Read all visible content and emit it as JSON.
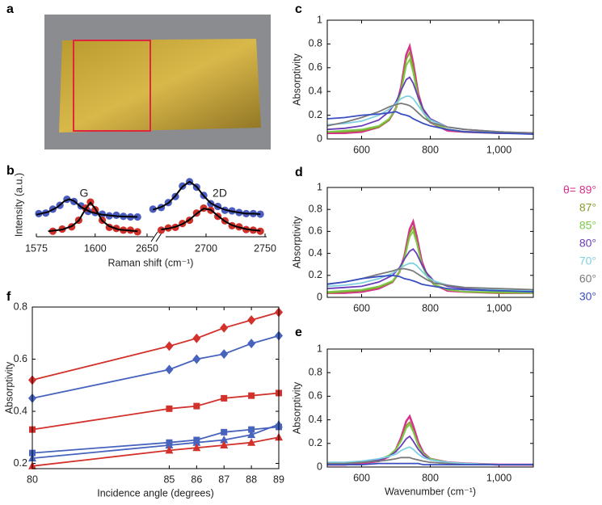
{
  "chart_data": [
    {
      "type": "image",
      "panel_label": "a"
    },
    {
      "type": "scatter",
      "panel_label": "b",
      "ylabel": "Intensity (a.u.)",
      "xlabel": "Raman shift (cm⁻¹)",
      "annotations": [
        "G",
        "2D"
      ],
      "xlim": [
        1575,
        1620
      ],
      "xticks": [
        1575,
        1600
      ],
      "x2lim": [
        2650,
        2750
      ],
      "x2ticks": [
        2650,
        2700,
        2750
      ],
      "ylim": [
        0,
        1.1
      ],
      "series": [
        {
          "style": "points",
          "color": "#4a5cc0",
          "x": [
            1576,
            1579,
            1582,
            1585,
            1588,
            1591,
            1594,
            1597,
            1600,
            1603,
            1606,
            1609,
            1612,
            1615,
            1618
          ],
          "values": [
            0.42,
            0.43,
            0.5,
            0.57,
            0.68,
            0.64,
            0.56,
            0.46,
            0.44,
            0.41,
            0.38,
            0.39,
            0.37,
            0.36,
            0.36
          ]
        },
        {
          "style": "points",
          "color": "#d0302a",
          "x": [
            1582,
            1586,
            1590,
            1593,
            1596,
            1598,
            1600,
            1603,
            1606,
            1609,
            1612,
            1615,
            1618
          ],
          "values": [
            0.1,
            0.14,
            0.18,
            0.3,
            0.52,
            0.63,
            0.49,
            0.3,
            0.17,
            0.15,
            0.12,
            0.12,
            0.09
          ]
        },
        {
          "style": "points",
          "color": "#4a5cc0",
          "axis": "x2",
          "x": [
            2655,
            2662,
            2668,
            2674,
            2680,
            2686,
            2692,
            2698,
            2704,
            2710,
            2716,
            2722,
            2728,
            2734,
            2740,
            2746
          ],
          "values": [
            0.5,
            0.53,
            0.62,
            0.73,
            0.92,
            1.0,
            0.9,
            0.75,
            0.6,
            0.55,
            0.48,
            0.47,
            0.44,
            0.42,
            0.42,
            0.41
          ]
        },
        {
          "style": "points",
          "color": "#d0302a",
          "axis": "x2",
          "x": [
            2662,
            2668,
            2674,
            2680,
            2686,
            2692,
            2698,
            2704,
            2710,
            2716,
            2722,
            2728,
            2734,
            2740,
            2746
          ],
          "values": [
            0.12,
            0.16,
            0.17,
            0.24,
            0.3,
            0.43,
            0.52,
            0.48,
            0.37,
            0.29,
            0.2,
            0.18,
            0.13,
            0.12,
            0.1
          ]
        },
        {
          "style": "line",
          "color": "#000000",
          "x": [
            1575,
            1580,
            1584,
            1587,
            1589,
            1591,
            1594,
            1598,
            1603,
            1610,
            1618
          ],
          "values": [
            0.4,
            0.45,
            0.54,
            0.65,
            0.68,
            0.65,
            0.54,
            0.45,
            0.4,
            0.37,
            0.36
          ]
        },
        {
          "style": "line",
          "color": "#000000",
          "x": [
            1580,
            1586,
            1590,
            1593,
            1596,
            1598,
            1600,
            1603,
            1606,
            1610,
            1618
          ],
          "values": [
            0.1,
            0.13,
            0.19,
            0.29,
            0.51,
            0.62,
            0.51,
            0.29,
            0.19,
            0.13,
            0.1
          ]
        },
        {
          "style": "line",
          "color": "#000000",
          "axis": "x2",
          "x": [
            2655,
            2662,
            2668,
            2674,
            2680,
            2686,
            2692,
            2698,
            2704,
            2710,
            2716,
            2722,
            2728,
            2734,
            2740,
            2746
          ],
          "values": [
            0.49,
            0.54,
            0.61,
            0.74,
            0.91,
            1.0,
            0.91,
            0.74,
            0.61,
            0.54,
            0.49,
            0.46,
            0.44,
            0.42,
            0.42,
            0.41
          ]
        },
        {
          "style": "line",
          "color": "#000000",
          "axis": "x2",
          "x": [
            2662,
            2668,
            2674,
            2680,
            2686,
            2692,
            2698,
            2704,
            2710,
            2716,
            2722,
            2728,
            2734,
            2740,
            2746
          ],
          "values": [
            0.13,
            0.15,
            0.18,
            0.23,
            0.31,
            0.42,
            0.51,
            0.49,
            0.38,
            0.28,
            0.21,
            0.17,
            0.14,
            0.12,
            0.11
          ]
        }
      ]
    },
    {
      "type": "line",
      "panel_label": "c",
      "ylabel": "Absorptivity",
      "xlim": [
        500,
        1100
      ],
      "xticks": [
        600,
        800,
        {
          "value": 1000,
          "label": "1,000"
        }
      ],
      "ylim": [
        0,
        1
      ],
      "yticks": [
        0,
        0.2,
        0.4,
        0.6,
        0.8,
        1
      ],
      "x": [
        500,
        550,
        600,
        650,
        680,
        700,
        715,
        730,
        740,
        750,
        765,
        780,
        800,
        850,
        900,
        1000,
        1100
      ],
      "series": [
        {
          "color": "#d6338c",
          "values": [
            0.05,
            0.05,
            0.06,
            0.1,
            0.16,
            0.26,
            0.44,
            0.71,
            0.78,
            0.64,
            0.38,
            0.23,
            0.14,
            0.07,
            0.06,
            0.05,
            0.05
          ]
        },
        {
          "color": "#8a9a2e",
          "values": [
            0.06,
            0.06,
            0.07,
            0.1,
            0.16,
            0.26,
            0.42,
            0.67,
            0.73,
            0.6,
            0.36,
            0.22,
            0.14,
            0.08,
            0.06,
            0.05,
            0.05
          ]
        },
        {
          "color": "#7ccc4a",
          "values": [
            0.06,
            0.07,
            0.08,
            0.11,
            0.17,
            0.26,
            0.4,
            0.62,
            0.67,
            0.56,
            0.34,
            0.22,
            0.14,
            0.08,
            0.06,
            0.05,
            0.05
          ]
        },
        {
          "color": "#6a3db8",
          "values": [
            0.08,
            0.09,
            0.11,
            0.16,
            0.23,
            0.31,
            0.41,
            0.5,
            0.52,
            0.47,
            0.35,
            0.25,
            0.17,
            0.1,
            0.08,
            0.06,
            0.05
          ]
        },
        {
          "color": "#7fd0e0",
          "values": [
            0.12,
            0.13,
            0.15,
            0.2,
            0.25,
            0.3,
            0.34,
            0.36,
            0.36,
            0.34,
            0.28,
            0.22,
            0.16,
            0.1,
            0.08,
            0.06,
            0.05
          ]
        },
        {
          "color": "#7a7a7a",
          "values": [
            0.11,
            0.14,
            0.18,
            0.23,
            0.27,
            0.29,
            0.3,
            0.29,
            0.28,
            0.26,
            0.22,
            0.18,
            0.14,
            0.1,
            0.08,
            0.06,
            0.05
          ]
        },
        {
          "color": "#3a4fc0",
          "values": [
            0.17,
            0.18,
            0.2,
            0.21,
            0.22,
            0.23,
            0.21,
            0.2,
            0.19,
            0.17,
            0.15,
            0.13,
            0.11,
            0.08,
            0.06,
            0.05,
            0.04
          ]
        }
      ]
    },
    {
      "type": "line",
      "panel_label": "d",
      "ylabel": "Absorptivity",
      "xlim": [
        500,
        1100
      ],
      "xticks": [
        600,
        800,
        {
          "value": 1000,
          "label": "1,000"
        }
      ],
      "ylim": [
        0,
        1
      ],
      "yticks": [
        0,
        0.2,
        0.4,
        0.6,
        0.8,
        1
      ],
      "x": [
        500,
        550,
        600,
        650,
        690,
        710,
        725,
        740,
        750,
        760,
        775,
        790,
        810,
        850,
        900,
        1000,
        1100
      ],
      "series": [
        {
          "name": "θ= 89°",
          "color": "#d6338c",
          "values": [
            0.04,
            0.04,
            0.05,
            0.08,
            0.14,
            0.23,
            0.38,
            0.62,
            0.69,
            0.56,
            0.33,
            0.2,
            0.12,
            0.06,
            0.05,
            0.04,
            0.04
          ]
        },
        {
          "name": "87°",
          "color": "#8a9a2e",
          "values": [
            0.04,
            0.05,
            0.06,
            0.09,
            0.14,
            0.23,
            0.37,
            0.58,
            0.64,
            0.52,
            0.31,
            0.19,
            0.12,
            0.07,
            0.05,
            0.04,
            0.04
          ]
        },
        {
          "name": "85°",
          "color": "#7ccc4a",
          "values": [
            0.05,
            0.06,
            0.07,
            0.1,
            0.15,
            0.23,
            0.35,
            0.55,
            0.6,
            0.5,
            0.3,
            0.19,
            0.12,
            0.07,
            0.05,
            0.05,
            0.04
          ]
        },
        {
          "name": "80°",
          "color": "#6a3db8",
          "values": [
            0.08,
            0.09,
            0.1,
            0.14,
            0.2,
            0.27,
            0.35,
            0.42,
            0.44,
            0.4,
            0.3,
            0.22,
            0.15,
            0.1,
            0.08,
            0.07,
            0.06
          ]
        },
        {
          "name": "70°",
          "color": "#7fd0e0",
          "values": [
            0.1,
            0.11,
            0.13,
            0.17,
            0.22,
            0.26,
            0.29,
            0.31,
            0.31,
            0.29,
            0.24,
            0.19,
            0.15,
            0.11,
            0.09,
            0.07,
            0.06
          ]
        },
        {
          "name": "60°",
          "color": "#7a7a7a",
          "values": [
            0.12,
            0.14,
            0.17,
            0.21,
            0.24,
            0.26,
            0.26,
            0.25,
            0.24,
            0.22,
            0.19,
            0.16,
            0.13,
            0.11,
            0.09,
            0.08,
            0.07
          ]
        },
        {
          "name": "30°",
          "color": "#3a4fc0",
          "values": [
            0.12,
            0.14,
            0.17,
            0.19,
            0.2,
            0.19,
            0.17,
            0.16,
            0.15,
            0.14,
            0.12,
            0.11,
            0.1,
            0.08,
            0.07,
            0.06,
            0.05
          ]
        }
      ]
    },
    {
      "type": "line",
      "panel_label": "e",
      "ylabel": "Absorptivity",
      "xlabel": "Wavenumber (cm⁻¹)",
      "xlim": [
        500,
        1100
      ],
      "xticks": [
        600,
        800,
        {
          "value": 1000,
          "label": "1,000"
        }
      ],
      "ylim": [
        0,
        1
      ],
      "yticks": [
        0,
        0.2,
        0.4,
        0.6,
        0.8,
        1
      ],
      "x": [
        500,
        550,
        600,
        650,
        680,
        700,
        715,
        730,
        740,
        750,
        765,
        780,
        800,
        850,
        900,
        1000,
        1100
      ],
      "series": [
        {
          "color": "#d6338c",
          "values": [
            0.02,
            0.02,
            0.03,
            0.05,
            0.09,
            0.15,
            0.25,
            0.39,
            0.43,
            0.35,
            0.21,
            0.12,
            0.07,
            0.04,
            0.03,
            0.02,
            0.02
          ]
        },
        {
          "color": "#8a9a2e",
          "values": [
            0.03,
            0.03,
            0.04,
            0.06,
            0.09,
            0.15,
            0.23,
            0.35,
            0.38,
            0.31,
            0.19,
            0.11,
            0.07,
            0.04,
            0.03,
            0.02,
            0.02
          ]
        },
        {
          "color": "#7ccc4a",
          "values": [
            0.03,
            0.03,
            0.04,
            0.06,
            0.1,
            0.15,
            0.22,
            0.33,
            0.36,
            0.3,
            0.18,
            0.11,
            0.07,
            0.04,
            0.03,
            0.02,
            0.02
          ]
        },
        {
          "color": "#6a3db8",
          "values": [
            0.03,
            0.03,
            0.04,
            0.06,
            0.09,
            0.13,
            0.18,
            0.24,
            0.26,
            0.22,
            0.15,
            0.1,
            0.06,
            0.04,
            0.03,
            0.02,
            0.02
          ]
        },
        {
          "color": "#7fd0e0",
          "values": [
            0.04,
            0.04,
            0.05,
            0.07,
            0.09,
            0.11,
            0.14,
            0.16,
            0.17,
            0.15,
            0.11,
            0.08,
            0.06,
            0.04,
            0.03,
            0.02,
            0.02
          ]
        },
        {
          "color": "#7a7a7a",
          "values": [
            0.03,
            0.03,
            0.04,
            0.05,
            0.06,
            0.07,
            0.08,
            0.08,
            0.08,
            0.07,
            0.06,
            0.05,
            0.04,
            0.03,
            0.02,
            0.02,
            0.02
          ]
        },
        {
          "color": "#3a4fc0",
          "values": [
            0.02,
            0.02,
            0.02,
            0.03,
            0.03,
            0.03,
            0.03,
            0.03,
            0.03,
            0.03,
            0.03,
            0.02,
            0.02,
            0.02,
            0.02,
            0.02,
            0.02
          ]
        }
      ]
    },
    {
      "type": "line",
      "panel_label": "f",
      "ylabel": "Absorptivity",
      "xlabel": "Incidence angle (degrees)",
      "xlim": [
        80,
        89
      ],
      "xticks": [
        80,
        85,
        86,
        87,
        88,
        89
      ],
      "ylim": [
        0.18,
        0.8
      ],
      "yticks": [
        0.2,
        0.4,
        0.6,
        0.8
      ],
      "x": [
        80,
        85,
        86,
        87,
        88,
        89
      ],
      "series": [
        {
          "color": "#d3312c",
          "marker": "diamond",
          "values": [
            0.52,
            0.65,
            0.68,
            0.72,
            0.75,
            0.78
          ]
        },
        {
          "color": "#4763bd",
          "marker": "diamond",
          "values": [
            0.45,
            0.56,
            0.6,
            0.62,
            0.66,
            0.69
          ]
        },
        {
          "color": "#d3312c",
          "marker": "square",
          "values": [
            0.33,
            0.41,
            0.42,
            0.45,
            0.46,
            0.47
          ]
        },
        {
          "color": "#4763bd",
          "marker": "square",
          "values": [
            0.24,
            0.28,
            0.29,
            0.32,
            0.33,
            0.34
          ]
        },
        {
          "color": "#4763bd",
          "marker": "triangle",
          "values": [
            0.22,
            0.27,
            0.28,
            0.29,
            0.31,
            0.35
          ]
        },
        {
          "color": "#d3312c",
          "marker": "triangle",
          "values": [
            0.19,
            0.25,
            0.26,
            0.27,
            0.28,
            0.3
          ]
        }
      ]
    }
  ]
}
